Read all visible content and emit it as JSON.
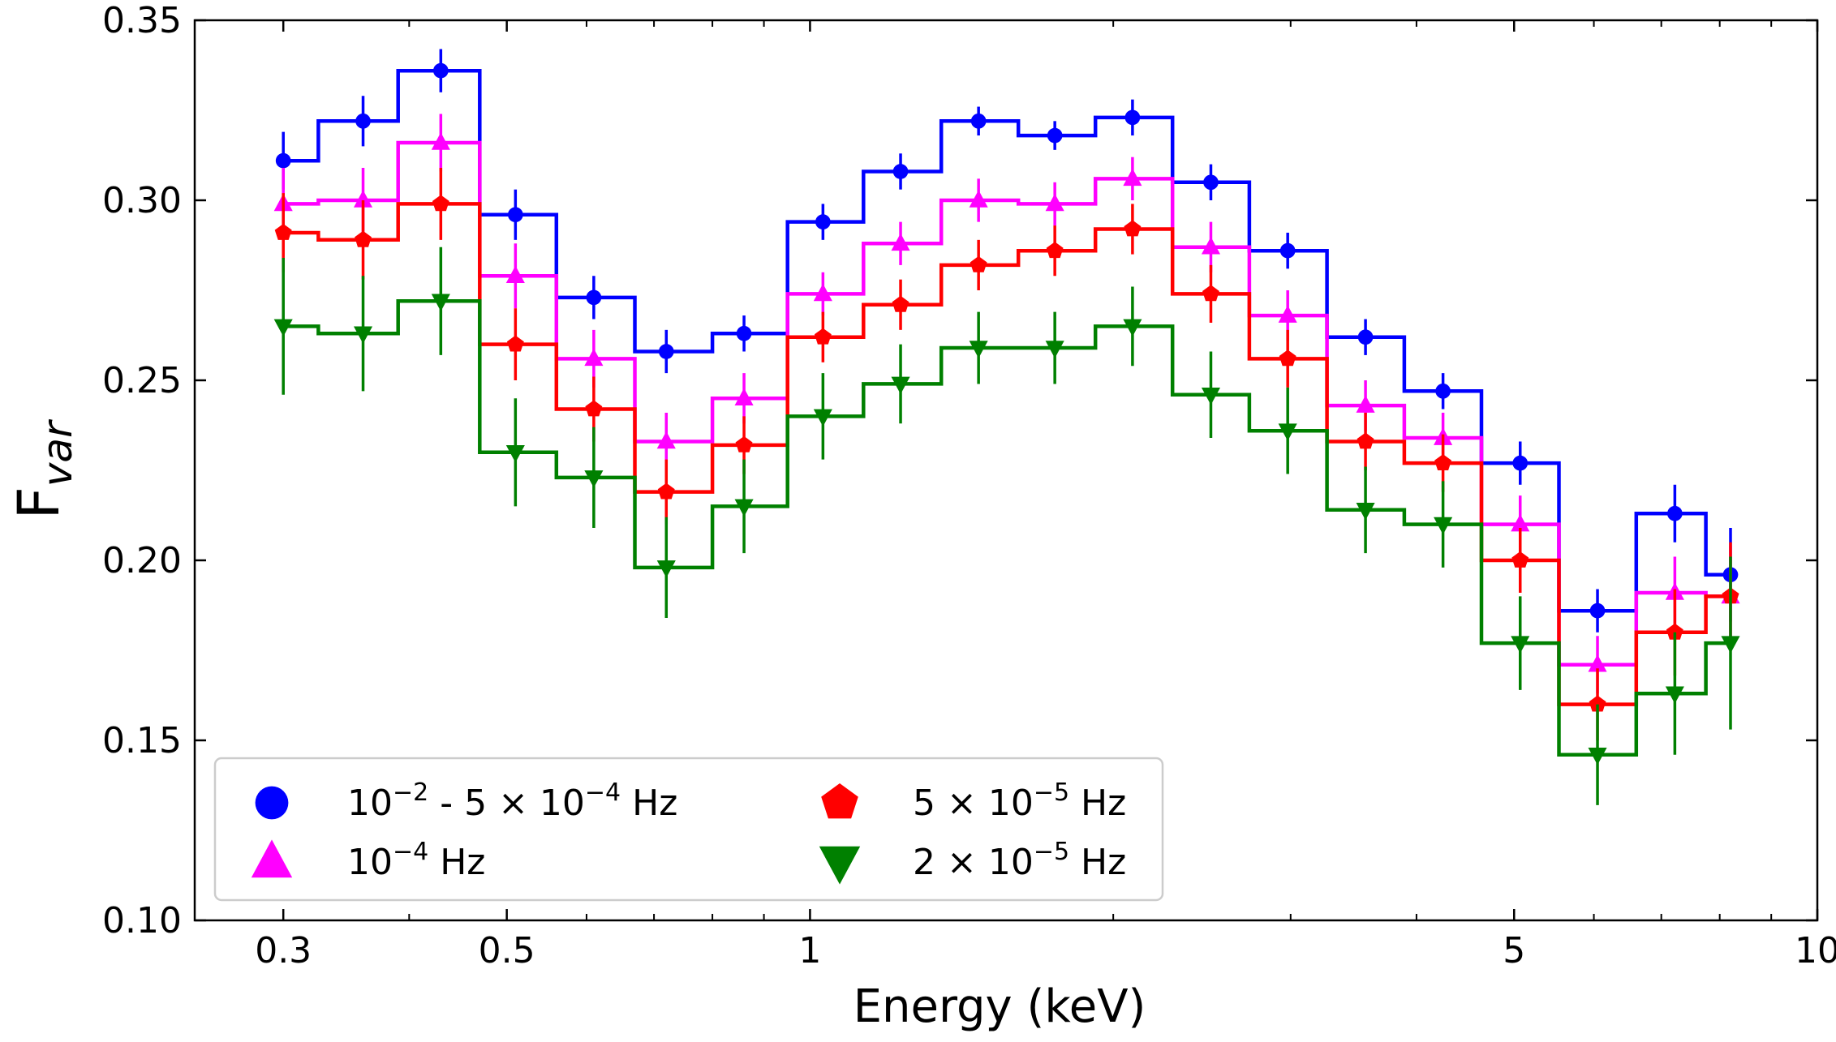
{
  "chart_data": {
    "type": "line",
    "subtype": "step-with-errorbars",
    "xlabel": "Energy (keV)",
    "ylabel_main": "F",
    "ylabel_sub": "var",
    "xscale": "log",
    "xlim": [
      0.245,
      10
    ],
    "ylim": [
      0.1,
      0.35
    ],
    "xticks": [
      {
        "value": 0.3,
        "label": "0.3"
      },
      {
        "value": 0.5,
        "label": "0.5"
      },
      {
        "value": 1,
        "label": "1"
      },
      {
        "value": 5,
        "label": "5"
      },
      {
        "value": 10,
        "label": "10"
      }
    ],
    "yticks": [
      {
        "value": 0.1,
        "label": "0.10"
      },
      {
        "value": 0.15,
        "label": "0.15"
      },
      {
        "value": 0.2,
        "label": "0.20"
      },
      {
        "value": 0.25,
        "label": "0.25"
      },
      {
        "value": 0.3,
        "label": "0.30"
      },
      {
        "value": 0.35,
        "label": "0.35"
      }
    ],
    "x": [
      0.3,
      0.36,
      0.43,
      0.51,
      0.61,
      0.72,
      0.86,
      1.03,
      1.23,
      1.47,
      1.75,
      2.09,
      2.5,
      2.98,
      3.56,
      4.25,
      5.07,
      6.05,
      7.22,
      8.2
    ],
    "bin_edges": [
      0.3,
      0.325,
      0.39,
      0.47,
      0.56,
      0.67,
      0.8,
      0.95,
      1.13,
      1.35,
      1.61,
      1.92,
      2.29,
      2.73,
      3.26,
      3.89,
      4.64,
      5.54,
      6.61,
      7.75,
      8.2
    ],
    "legend": {
      "placement": "bottom-left",
      "columns": 2
    },
    "series": [
      {
        "name": "10^-2 - 5x10^-4 Hz",
        "legend_label": {
          "a": "10",
          "a_sup": "−2",
          "b": " - 5 × 10",
          "b_sup": "−4",
          "c": " Hz"
        },
        "color": "#0000ff",
        "marker": "circle",
        "values": [
          0.311,
          0.322,
          0.336,
          0.296,
          0.273,
          0.258,
          0.263,
          0.294,
          0.308,
          0.322,
          0.318,
          0.323,
          0.305,
          0.286,
          0.262,
          0.247,
          0.227,
          0.186,
          0.213,
          0.196
        ],
        "errors": [
          0.008,
          0.007,
          0.006,
          0.007,
          0.006,
          0.006,
          0.005,
          0.005,
          0.005,
          0.004,
          0.004,
          0.005,
          0.005,
          0.005,
          0.005,
          0.005,
          0.006,
          0.006,
          0.008,
          0.013
        ]
      },
      {
        "name": "10^-4 Hz",
        "legend_label": {
          "a": "10",
          "a_sup": "−4",
          "b": " Hz",
          "b_sup": "",
          "c": ""
        },
        "color": "#ff00ff",
        "marker": "triangle-up",
        "values": [
          0.299,
          0.3,
          0.316,
          0.279,
          0.256,
          0.233,
          0.245,
          0.274,
          0.288,
          0.3,
          0.299,
          0.306,
          0.287,
          0.268,
          0.243,
          0.234,
          0.21,
          0.171,
          0.191,
          0.19
        ],
        "errors": [
          0.01,
          0.009,
          0.008,
          0.009,
          0.008,
          0.008,
          0.007,
          0.006,
          0.006,
          0.006,
          0.006,
          0.006,
          0.007,
          0.007,
          0.007,
          0.007,
          0.008,
          0.008,
          0.01,
          0.014
        ]
      },
      {
        "name": "5x10^-5 Hz",
        "legend_label": {
          "a": "5 × 10",
          "a_sup": "−5",
          "b": " Hz",
          "b_sup": "",
          "c": ""
        },
        "color": "#ff0000",
        "marker": "pentagon",
        "values": [
          0.291,
          0.289,
          0.299,
          0.26,
          0.242,
          0.219,
          0.232,
          0.262,
          0.271,
          0.282,
          0.286,
          0.292,
          0.274,
          0.256,
          0.233,
          0.227,
          0.2,
          0.16,
          0.18,
          0.19
        ],
        "errors": [
          0.011,
          0.011,
          0.01,
          0.01,
          0.009,
          0.009,
          0.008,
          0.007,
          0.007,
          0.007,
          0.007,
          0.007,
          0.008,
          0.008,
          0.008,
          0.008,
          0.009,
          0.01,
          0.012,
          0.015
        ]
      },
      {
        "name": "2x10^-5 Hz",
        "legend_label": {
          "a": "2 × 10",
          "a_sup": "−5",
          "b": " Hz",
          "b_sup": "",
          "c": ""
        },
        "color": "#008000",
        "marker": "triangle-down",
        "values": [
          0.265,
          0.263,
          0.272,
          0.23,
          0.223,
          0.198,
          0.215,
          0.24,
          0.249,
          0.259,
          0.259,
          0.265,
          0.246,
          0.236,
          0.214,
          0.21,
          0.177,
          0.146,
          0.163,
          0.177
        ],
        "errors": [
          0.019,
          0.016,
          0.015,
          0.015,
          0.014,
          0.014,
          0.013,
          0.012,
          0.011,
          0.01,
          0.01,
          0.011,
          0.012,
          0.012,
          0.012,
          0.012,
          0.013,
          0.014,
          0.017,
          0.024
        ]
      }
    ]
  }
}
